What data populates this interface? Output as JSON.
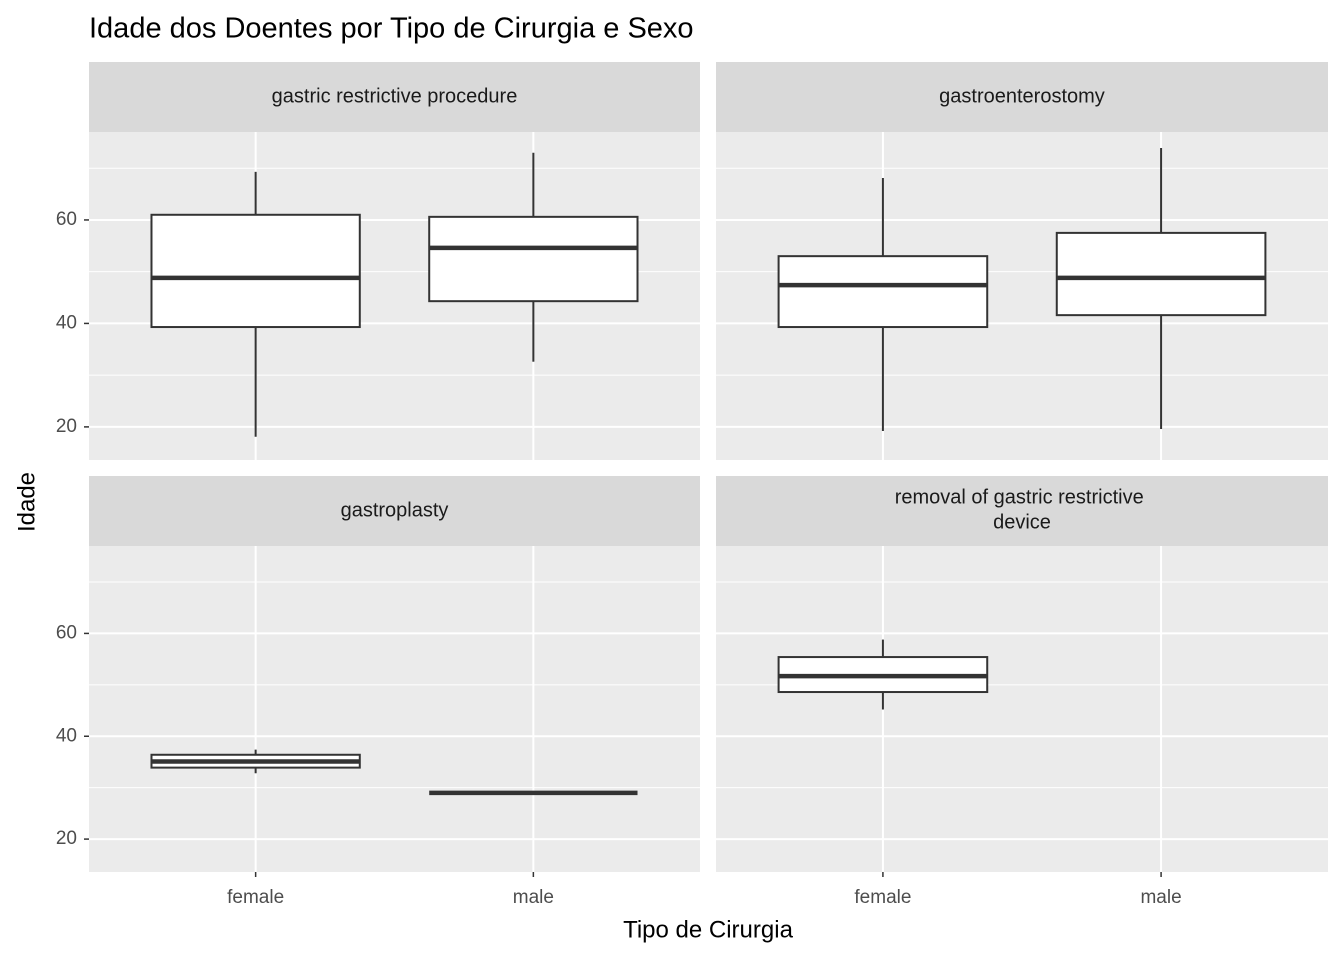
{
  "chart_data": {
    "type": "boxplot",
    "title": "Idade dos Doentes por Tipo de Cirurgia e Sexo",
    "x_label": "Tipo de Cirurgia",
    "y_label": "Idade",
    "categories": [
      "female",
      "male"
    ],
    "ylim": [
      13.6,
      77
    ],
    "yticks": [
      20,
      40,
      60
    ],
    "minor_grid": true,
    "box_fill": "#ffffff",
    "box_stroke": "#333333",
    "panels": [
      {
        "title": "gastric restrictive procedure",
        "boxes": [
          {
            "min": 18.1,
            "q1": 39.3,
            "median": 48.8,
            "q3": 61,
            "max": 69.3
          },
          {
            "min": 32.6,
            "q1": 44.3,
            "median": 54.6,
            "q3": 60.6,
            "max": 73
          }
        ]
      },
      {
        "title": "gastroenterostomy",
        "boxes": [
          {
            "min": 19.2,
            "q1": 39.3,
            "median": 47.4,
            "q3": 53,
            "max": 68.1
          },
          {
            "min": 19.6,
            "q1": 41.6,
            "median": 48.8,
            "q3": 57.5,
            "max": 73.9
          }
        ]
      },
      {
        "title": "gastroplasty",
        "boxes": [
          {
            "min": 32.8,
            "q1": 33.9,
            "median": 35.1,
            "q3": 36.4,
            "max": 37.4
          },
          {
            "min": 29,
            "q1": 29,
            "median": 29,
            "q3": 29,
            "max": 29
          }
        ]
      },
      {
        "title": "removal of gastric restrictive device",
        "boxes": [
          {
            "min": 45.2,
            "q1": 48.6,
            "median": 51.7,
            "q3": 55.4,
            "max": 58.8
          },
          null
        ]
      }
    ]
  }
}
